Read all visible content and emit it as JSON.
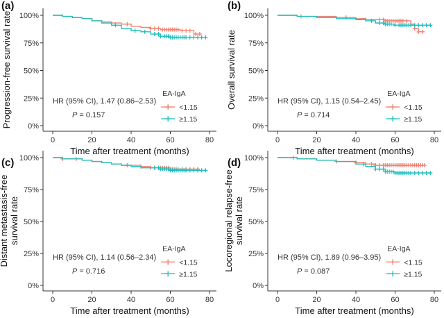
{
  "chart_data": [
    {
      "type": "line",
      "panel_label": "(a)",
      "ylabel": [
        "Progression-free survival rate"
      ],
      "xlabel": "Time after treatment (months)",
      "x_ticks": [
        "0",
        "20",
        "40",
        "60",
        "80"
      ],
      "y_ticks": [
        "0%",
        "25%",
        "50%",
        "75%",
        "100%"
      ],
      "xlim": [
        0,
        80
      ],
      "ylim": [
        0,
        100
      ],
      "legend_title": "EA-IgA",
      "hr_text": "HR (95% CI), 1.47 (0.86–2.53)",
      "p_label": "P",
      "p_text": " = 0.157",
      "series": [
        {
          "name": "<1.15",
          "color": "#F08273",
          "x": [
            0,
            5,
            10,
            15,
            20,
            25,
            30,
            35,
            40,
            45,
            50,
            55,
            60,
            65,
            70,
            72,
            75
          ],
          "y": [
            100,
            99,
            98,
            97,
            95,
            94,
            93,
            92,
            90,
            89,
            88,
            87,
            87,
            86,
            86,
            83,
            83
          ],
          "censor_x": [
            38,
            50,
            52,
            54,
            56,
            57,
            58,
            59,
            60,
            61,
            62,
            63,
            64,
            66,
            68,
            70,
            73,
            75
          ]
        },
        {
          "name": "≥1.15",
          "color": "#1FBFBF",
          "x": [
            0,
            5,
            10,
            15,
            20,
            25,
            30,
            35,
            40,
            45,
            50,
            55,
            60,
            65,
            70,
            75,
            78
          ],
          "y": [
            100,
            99,
            98,
            97,
            95,
            93,
            91,
            88,
            86,
            85,
            83,
            81,
            80,
            80,
            80,
            80,
            80
          ],
          "censor_x": [
            32,
            42,
            47,
            52,
            54,
            55,
            57,
            58,
            59,
            60,
            61,
            62,
            63,
            64,
            65,
            66,
            67,
            68,
            70,
            72,
            74,
            76,
            78
          ]
        }
      ]
    },
    {
      "type": "line",
      "panel_label": "(b)",
      "ylabel": [
        "Overall survival rate"
      ],
      "xlabel": "Time after treatment (months)",
      "x_ticks": [
        "0",
        "20",
        "40",
        "60",
        "80"
      ],
      "y_ticks": [
        "0%",
        "25%",
        "50%",
        "75%",
        "100%"
      ],
      "xlim": [
        0,
        80
      ],
      "ylim": [
        0,
        100
      ],
      "legend_title": "EA-IgA",
      "hr_text": "HR (95% CI), 1.15 (0.54–2.45)",
      "p_label": "P",
      "p_text": " = 0.714",
      "series": [
        {
          "name": "<1.15",
          "color": "#F08273",
          "x": [
            0,
            10,
            20,
            30,
            40,
            45,
            50,
            55,
            60,
            65,
            68,
            70,
            72,
            75
          ],
          "y": [
            100,
            99,
            99,
            98,
            97,
            96,
            96,
            95,
            95,
            95,
            92,
            88,
            85,
            85
          ],
          "censor_x": [
            12,
            35,
            45,
            52,
            54,
            55,
            56,
            57,
            58,
            59,
            60,
            61,
            62,
            63,
            64,
            66,
            70,
            72,
            74
          ]
        },
        {
          "name": "≥1.15",
          "color": "#1FBFBF",
          "x": [
            0,
            10,
            20,
            30,
            40,
            45,
            50,
            55,
            60,
            65,
            70,
            75,
            78
          ],
          "y": [
            100,
            99,
            98,
            97,
            96,
            95,
            93,
            92,
            91,
            91,
            91,
            91,
            91
          ],
          "censor_x": [
            48,
            52,
            54,
            55,
            56,
            57,
            58,
            60,
            62,
            63,
            64,
            65,
            66,
            67,
            68,
            70,
            72,
            74,
            76,
            78
          ]
        }
      ]
    },
    {
      "type": "line",
      "panel_label": "(c)",
      "ylabel": [
        "Distant metastasis-free",
        "survival rate"
      ],
      "xlabel": "Time after treatment (months)",
      "x_ticks": [
        "0",
        "20",
        "40",
        "60",
        "80"
      ],
      "y_ticks": [
        "0%",
        "25%",
        "50%",
        "75%",
        "100%"
      ],
      "xlim": [
        0,
        80
      ],
      "ylim": [
        0,
        100
      ],
      "legend_title": "EA-IgA",
      "hr_text": "HR (95% CI), 1.14 (0.56–2.34)",
      "p_label": "P",
      "p_text": " = 0.716",
      "series": [
        {
          "name": "<1.15",
          "color": "#F08273",
          "x": [
            0,
            5,
            10,
            15,
            20,
            25,
            30,
            35,
            40,
            45,
            50,
            55,
            60,
            65,
            70,
            75
          ],
          "y": [
            100,
            99,
            99,
            98,
            97,
            96,
            95,
            94,
            94,
            93,
            92,
            92,
            91,
            91,
            91,
            91
          ],
          "censor_x": [
            5,
            12,
            38,
            45,
            50,
            52,
            54,
            55,
            56,
            57,
            58,
            59,
            60,
            61,
            62,
            63,
            64,
            66,
            68,
            70,
            72,
            74
          ]
        },
        {
          "name": "≥1.15",
          "color": "#1FBFBF",
          "x": [
            0,
            5,
            10,
            15,
            20,
            25,
            30,
            35,
            40,
            45,
            50,
            55,
            60,
            65,
            70,
            75,
            78
          ],
          "y": [
            100,
            99,
            99,
            98,
            97,
            96,
            95,
            94,
            93,
            92,
            92,
            91,
            90,
            90,
            90,
            90,
            90
          ],
          "censor_x": [
            52,
            54,
            55,
            56,
            57,
            58,
            59,
            60,
            61,
            62,
            63,
            64,
            65,
            66,
            67,
            68,
            70,
            72,
            74,
            76,
            78
          ]
        }
      ]
    },
    {
      "type": "line",
      "panel_label": "(d)",
      "ylabel": [
        "Locoregional relapse-free",
        "survival rate"
      ],
      "xlabel": "Time after treatment (months)",
      "x_ticks": [
        "0",
        "20",
        "40",
        "60",
        "80"
      ],
      "y_ticks": [
        "0%",
        "25%",
        "50%",
        "75%",
        "100%"
      ],
      "xlim": [
        0,
        80
      ],
      "ylim": [
        0,
        100
      ],
      "legend_title": "EA-IgA",
      "hr_text": "HR (95% CI), 1.89 (0.96–3.95)",
      "p_label": "P",
      "p_text": " = 0.087",
      "series": [
        {
          "name": "<1.15",
          "color": "#F08273",
          "x": [
            0,
            10,
            20,
            30,
            40,
            45,
            50,
            55,
            60,
            65,
            70,
            75
          ],
          "y": [
            100,
            99,
            98,
            97,
            96,
            95,
            94,
            94,
            94,
            94,
            94,
            94
          ],
          "censor_x": [
            8,
            30,
            40,
            48,
            50,
            52,
            54,
            55,
            56,
            57,
            58,
            59,
            60,
            61,
            62,
            63,
            64,
            65,
            66,
            67,
            68,
            69,
            70,
            71,
            72,
            73,
            74,
            75
          ]
        },
        {
          "name": "≥1.15",
          "color": "#1FBFBF",
          "x": [
            0,
            10,
            20,
            30,
            40,
            45,
            50,
            55,
            60,
            65,
            70,
            75,
            78
          ],
          "y": [
            100,
            99,
            98,
            97,
            95,
            93,
            91,
            89,
            88,
            88,
            88,
            88,
            88
          ],
          "censor_x": [
            44,
            50,
            52,
            54,
            55,
            56,
            57,
            58,
            59,
            60,
            61,
            62,
            63,
            64,
            65,
            66,
            67,
            68,
            70,
            72,
            74,
            76,
            78
          ]
        }
      ]
    }
  ]
}
